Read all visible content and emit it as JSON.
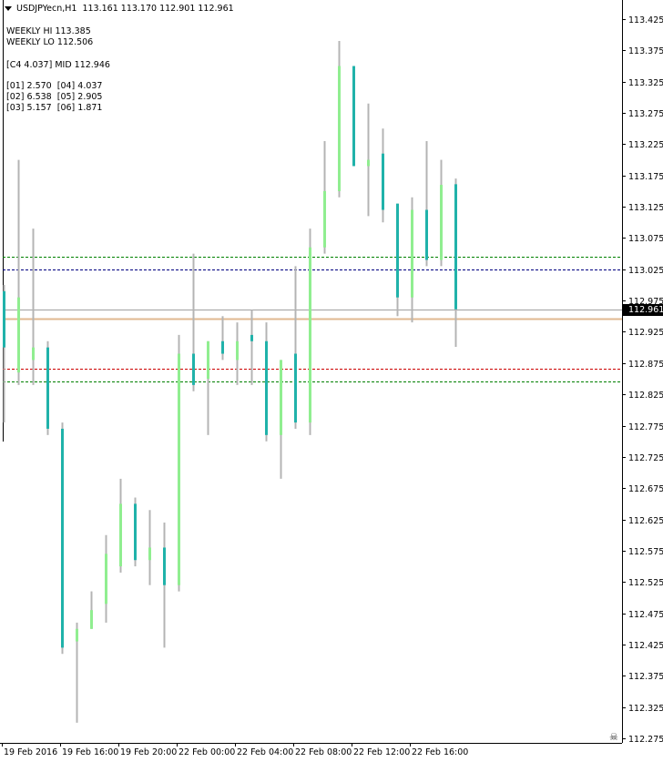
{
  "header": {
    "symbol": "USDJPYecn,H1",
    "ohlc": "113.161 113.170 112.901 112.961"
  },
  "info": {
    "weekly_hi": "WEEKLY HI 113.385",
    "weekly_lo": "WEEKLY LO 112.506",
    "c4": "[C4 4.037] MID 112.946",
    "row1": "[01] 2.570  [04] 4.037",
    "row2": "[02] 6.538  [05] 2.905",
    "row3": "[03] 5.157  [06] 1.871"
  },
  "current_price": "112.961",
  "colors": {
    "bull": "#90ee90",
    "bear": "#20b2aa",
    "wick": "#b4b4b4",
    "frame": "#000000",
    "green_dash": "#008000",
    "navy_dash": "#000080",
    "red_dash": "#cc0000",
    "mid_line": "#e0b890",
    "bid_line": "#a0a0a0"
  },
  "chart_data": {
    "type": "candlestick",
    "y_ticks": [
      "113.425",
      "113.375",
      "113.325",
      "113.275",
      "113.225",
      "113.175",
      "113.125",
      "113.075",
      "113.025",
      "112.975",
      "112.925",
      "112.875",
      "112.825",
      "112.775",
      "112.725",
      "112.675",
      "112.625",
      "112.575",
      "112.525",
      "112.475",
      "112.425",
      "112.375",
      "112.325",
      "112.275"
    ],
    "x_labels": [
      "19 Feb 2016",
      "19 Feb 16:00",
      "19 Feb 20:00",
      "22 Feb 00:00",
      "22 Feb 04:00",
      "22 Feb 08:00",
      "22 Feb 12:00",
      "22 Feb 16:00"
    ],
    "ylim": [
      112.26,
      113.44
    ],
    "candles": [
      {
        "open": 112.99,
        "high": 113.0,
        "low": 112.78,
        "close": 112.9
      },
      {
        "open": 112.86,
        "high": 113.2,
        "low": 112.84,
        "close": 112.98
      },
      {
        "open": 112.88,
        "high": 113.09,
        "low": 112.84,
        "close": 112.9
      },
      {
        "open": 112.9,
        "high": 112.91,
        "low": 112.76,
        "close": 112.77
      },
      {
        "open": 112.77,
        "high": 112.78,
        "low": 112.41,
        "close": 112.42
      },
      {
        "open": 112.43,
        "high": 112.46,
        "low": 112.3,
        "close": 112.45
      },
      {
        "open": 112.45,
        "high": 112.51,
        "low": 112.45,
        "close": 112.48
      },
      {
        "open": 112.49,
        "high": 112.6,
        "low": 112.46,
        "close": 112.57
      },
      {
        "open": 112.55,
        "high": 112.69,
        "low": 112.54,
        "close": 112.65
      },
      {
        "open": 112.65,
        "high": 112.66,
        "low": 112.55,
        "close": 112.56
      },
      {
        "open": 112.56,
        "high": 112.64,
        "low": 112.52,
        "close": 112.58
      },
      {
        "open": 112.58,
        "high": 112.62,
        "low": 112.42,
        "close": 112.52
      },
      {
        "open": 112.52,
        "high": 112.92,
        "low": 112.51,
        "close": 112.89
      },
      {
        "open": 112.89,
        "high": 113.05,
        "low": 112.83,
        "close": 112.84
      },
      {
        "open": 112.85,
        "high": 112.91,
        "low": 112.76,
        "close": 112.91
      },
      {
        "open": 112.91,
        "high": 112.95,
        "low": 112.88,
        "close": 112.89
      },
      {
        "open": 112.88,
        "high": 112.94,
        "low": 112.84,
        "close": 112.91
      },
      {
        "open": 112.92,
        "high": 112.96,
        "low": 112.84,
        "close": 112.91
      },
      {
        "open": 112.91,
        "high": 112.94,
        "low": 112.75,
        "close": 112.76
      },
      {
        "open": 112.76,
        "high": 112.88,
        "low": 112.69,
        "close": 112.88
      },
      {
        "open": 112.89,
        "high": 113.03,
        "low": 112.77,
        "close": 112.78
      },
      {
        "open": 112.78,
        "high": 113.09,
        "low": 112.76,
        "close": 113.06
      },
      {
        "open": 113.06,
        "high": 113.23,
        "low": 113.05,
        "close": 113.15
      },
      {
        "open": 113.15,
        "high": 113.39,
        "low": 113.14,
        "close": 113.35
      },
      {
        "open": 113.35,
        "high": 113.35,
        "low": 113.19,
        "close": 113.19
      },
      {
        "open": 113.19,
        "high": 113.29,
        "low": 113.11,
        "close": 113.2
      },
      {
        "open": 113.21,
        "high": 113.25,
        "low": 113.1,
        "close": 113.12
      },
      {
        "open": 113.13,
        "high": 113.13,
        "low": 112.95,
        "close": 112.98
      },
      {
        "open": 112.98,
        "high": 113.14,
        "low": 112.94,
        "close": 113.12
      },
      {
        "open": 113.12,
        "high": 113.23,
        "low": 113.03,
        "close": 113.04
      },
      {
        "open": 113.04,
        "high": 113.2,
        "low": 113.03,
        "close": 113.16
      },
      {
        "open": 113.161,
        "high": 113.17,
        "low": 112.901,
        "close": 112.961
      }
    ],
    "levels": [
      {
        "value": 113.045,
        "color": "green_dash",
        "style": "dashed"
      },
      {
        "value": 113.025,
        "color": "navy_dash",
        "style": "dashed"
      },
      {
        "value": 112.961,
        "color": "bid_line",
        "style": "solid"
      },
      {
        "value": 112.946,
        "color": "mid_line",
        "style": "solid"
      },
      {
        "value": 112.866,
        "color": "red_dash",
        "style": "dashed"
      },
      {
        "value": 112.846,
        "color": "green_dash",
        "style": "dashed"
      }
    ]
  }
}
